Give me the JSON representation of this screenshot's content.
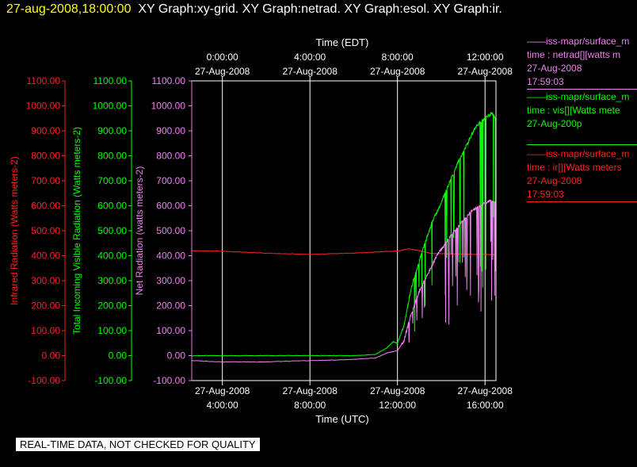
{
  "header": {
    "timestamp": "27-aug-2008,18:00:00",
    "titles": "XY Graph:xy-grid.  XY Graph:netrad.  XY Graph:esol.  XY Graph:ir."
  },
  "notice": "REAL-TIME DATA, NOT CHECKED FOR QUALITY",
  "colors": {
    "ir": "#ff2020",
    "vis": "#00ff00",
    "net": "#ee82ee",
    "grid": "#ffffff",
    "background": "#000000"
  },
  "legend": [
    {
      "lines": [
        "iss-mapr/surface_m",
        "time : netrad[][watts m",
        "27-Aug-2008",
        "17:59:03"
      ],
      "color": "#ee82ee",
      "top": 44
    },
    {
      "lines": [
        "iss-mapr/surface_m",
        "time : vis[][Watts mete",
        "27-Aug-200p",
        ""
      ],
      "color": "#00ff00",
      "top": 114
    },
    {
      "lines": [
        "iss-mapr/surface_m",
        "time : ir[][Watts meters",
        "27-Aug-2008",
        "17:59:03"
      ],
      "color": "#ff2020",
      "top": 186
    }
  ],
  "chart_data": {
    "type": "line",
    "top_axis": {
      "title": "Time (EDT)",
      "ticks": [
        {
          "t": 0,
          "time": "0:00:00",
          "date": "27-Aug-2008"
        },
        {
          "t": 4,
          "time": "4:00:00",
          "date": "27-Aug-2008"
        },
        {
          "t": 8,
          "time": "8:00:00",
          "date": "27-Aug-2008"
        },
        {
          "t": 12,
          "time": "12:00:00",
          "date": "27-Aug-2008"
        }
      ]
    },
    "bottom_axis": {
      "title": "Time (UTC)",
      "ticks": [
        {
          "t": 4,
          "date": "27-Aug-2008",
          "time": "4:00:00"
        },
        {
          "t": 8,
          "date": "27-Aug-2008",
          "time": "8:00:00"
        },
        {
          "t": 12,
          "date": "27-Aug-2008",
          "time": "12:00:00"
        },
        {
          "t": 16,
          "date": "27-Aug-2008",
          "time": "16:00:00"
        }
      ]
    },
    "xlim_utc_hours": [
      2.6,
      16.5
    ],
    "ylim": [
      -100,
      1100
    ],
    "y_ticks": [
      "-100.00",
      "0.00",
      "100.00",
      "200.00",
      "300.00",
      "400.00",
      "500.00",
      "600.00",
      "700.00",
      "800.00",
      "900.00",
      "1000.00",
      "1100.00"
    ],
    "y_axes": [
      {
        "label": "Infrared Radiation (Watts meters-2)",
        "color": "#ff2020"
      },
      {
        "label": "Total Incoming Visible Radiation (Watts meters-2)",
        "color": "#00ff00"
      },
      {
        "label": "Net Radiation (watts meters-2)",
        "color": "#ee82ee"
      }
    ],
    "grid": true,
    "series": [
      {
        "name": "ir",
        "color": "#ff2020",
        "x": [
          2.6,
          4,
          6,
          8,
          9,
          10,
          11,
          11.5,
          12,
          12.5,
          13,
          13.5,
          14,
          15,
          16,
          16.5
        ],
        "y": [
          420,
          418,
          410,
          405,
          408,
          410,
          415,
          417,
          418,
          428,
          420,
          410,
          408,
          406,
          405,
          404
        ]
      },
      {
        "name": "vis",
        "color": "#00ff00",
        "x": [
          2.6,
          4,
          6,
          8,
          9,
          10,
          11,
          11.5,
          11.8,
          12,
          12.3,
          12.6,
          13,
          13.3,
          13.6,
          14,
          14.4,
          14.8,
          15.2,
          15.6,
          16,
          16.3,
          16.5
        ],
        "y": [
          0,
          0,
          0,
          0,
          0,
          0,
          5,
          30,
          55,
          50,
          120,
          260,
          380,
          460,
          540,
          610,
          700,
          780,
          850,
          920,
          950,
          970,
          950
        ]
      },
      {
        "name": "net",
        "color": "#ee82ee",
        "x": [
          2.6,
          4,
          6,
          8,
          9,
          10,
          11,
          11.5,
          12,
          12.3,
          12.6,
          13,
          13.4,
          13.8,
          14.2,
          14.6,
          15,
          15.4,
          15.8,
          16.2,
          16.5
        ],
        "y": [
          -20,
          -25,
          -25,
          -20,
          -18,
          -15,
          -10,
          10,
          20,
          60,
          160,
          260,
          330,
          400,
          450,
          500,
          540,
          580,
          600,
          620,
          615
        ]
      }
    ]
  }
}
